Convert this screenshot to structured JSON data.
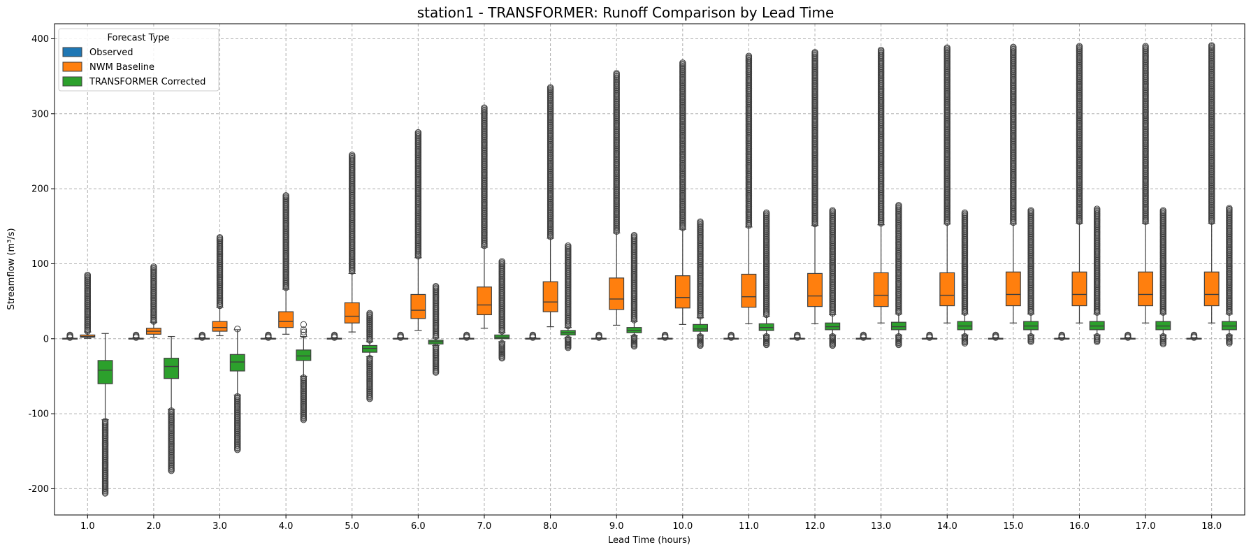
{
  "chart_data": {
    "type": "box",
    "title": "station1 - TRANSFORMER: Runoff Comparison by Lead Time",
    "xlabel": "Lead Time (hours)",
    "ylabel": "Streamflow (m³/s)",
    "ylim": [
      -235,
      420
    ],
    "yticks": [
      -200,
      -100,
      0,
      100,
      200,
      300,
      400
    ],
    "grid": true,
    "legend": {
      "title": "Forecast Type",
      "position": "top-left"
    },
    "categories": [
      "1.0",
      "2.0",
      "3.0",
      "4.0",
      "5.0",
      "6.0",
      "7.0",
      "8.0",
      "9.0",
      "10.0",
      "11.0",
      "12.0",
      "13.0",
      "14.0",
      "15.0",
      "16.0",
      "17.0",
      "18.0"
    ],
    "series": [
      {
        "name": "Observed",
        "color": "#1f77b4",
        "boxes": [
          {
            "wl": 0,
            "q1": 0,
            "med": 0.3,
            "q3": 0.6,
            "wh": 1.4,
            "omin": 1.6,
            "omax": 5
          },
          {
            "wl": 0,
            "q1": 0,
            "med": 0.3,
            "q3": 0.6,
            "wh": 1.4,
            "omin": 1.6,
            "omax": 5
          },
          {
            "wl": 0,
            "q1": 0,
            "med": 0.3,
            "q3": 0.6,
            "wh": 1.4,
            "omin": 1.6,
            "omax": 5
          },
          {
            "wl": 0,
            "q1": 0,
            "med": 0.3,
            "q3": 0.6,
            "wh": 1.4,
            "omin": 1.6,
            "omax": 5
          },
          {
            "wl": 0,
            "q1": 0,
            "med": 0.3,
            "q3": 0.6,
            "wh": 1.4,
            "omin": 1.6,
            "omax": 5
          },
          {
            "wl": 0,
            "q1": 0,
            "med": 0.3,
            "q3": 0.6,
            "wh": 1.4,
            "omin": 1.6,
            "omax": 5
          },
          {
            "wl": 0,
            "q1": 0,
            "med": 0.3,
            "q3": 0.6,
            "wh": 1.4,
            "omin": 1.6,
            "omax": 5
          },
          {
            "wl": 0,
            "q1": 0,
            "med": 0.3,
            "q3": 0.6,
            "wh": 1.4,
            "omin": 1.6,
            "omax": 5
          },
          {
            "wl": 0,
            "q1": 0,
            "med": 0.3,
            "q3": 0.6,
            "wh": 1.4,
            "omin": 1.6,
            "omax": 5
          },
          {
            "wl": 0,
            "q1": 0,
            "med": 0.3,
            "q3": 0.6,
            "wh": 1.4,
            "omin": 1.6,
            "omax": 5
          },
          {
            "wl": 0,
            "q1": 0,
            "med": 0.3,
            "q3": 0.6,
            "wh": 1.4,
            "omin": 1.6,
            "omax": 5
          },
          {
            "wl": 0,
            "q1": 0,
            "med": 0.3,
            "q3": 0.6,
            "wh": 1.4,
            "omin": 1.6,
            "omax": 5
          },
          {
            "wl": 0,
            "q1": 0,
            "med": 0.3,
            "q3": 0.6,
            "wh": 1.4,
            "omin": 1.6,
            "omax": 5
          },
          {
            "wl": 0,
            "q1": 0,
            "med": 0.3,
            "q3": 0.6,
            "wh": 1.4,
            "omin": 1.6,
            "omax": 5
          },
          {
            "wl": 0,
            "q1": 0,
            "med": 0.3,
            "q3": 0.6,
            "wh": 1.4,
            "omin": 1.6,
            "omax": 5
          },
          {
            "wl": 0,
            "q1": 0,
            "med": 0.3,
            "q3": 0.6,
            "wh": 1.4,
            "omin": 1.6,
            "omax": 5
          },
          {
            "wl": 0,
            "q1": 0,
            "med": 0.3,
            "q3": 0.6,
            "wh": 1.4,
            "omin": 1.6,
            "omax": 5
          },
          {
            "wl": 0,
            "q1": 0,
            "med": 0.3,
            "q3": 0.6,
            "wh": 1.4,
            "omin": 1.6,
            "omax": 5
          }
        ]
      },
      {
        "name": "NWM Baseline",
        "color": "#ff7f0e",
        "boxes": [
          {
            "wl": 0.5,
            "q1": 2,
            "med": 3,
            "q3": 5,
            "wh": 9,
            "omin": 10,
            "omax": 85
          },
          {
            "wl": 2,
            "q1": 6,
            "med": 10,
            "q3": 14,
            "wh": 22,
            "omin": 23,
            "omax": 96
          },
          {
            "wl": 4,
            "q1": 10,
            "med": 15,
            "q3": 23,
            "wh": 42,
            "omin": 44,
            "omax": 135
          },
          {
            "wl": 6,
            "q1": 15,
            "med": 23,
            "q3": 36,
            "wh": 66,
            "omin": 68,
            "omax": 191
          },
          {
            "wl": 9,
            "q1": 21,
            "med": 30,
            "q3": 48,
            "wh": 87,
            "omin": 90,
            "omax": 245
          },
          {
            "wl": 11,
            "q1": 27,
            "med": 38,
            "q3": 59,
            "wh": 108,
            "omin": 110,
            "omax": 275
          },
          {
            "wl": 14,
            "q1": 32,
            "med": 45,
            "q3": 69,
            "wh": 122,
            "omin": 124,
            "omax": 308
          },
          {
            "wl": 16,
            "q1": 36,
            "med": 49,
            "q3": 76,
            "wh": 134,
            "omin": 136,
            "omax": 335
          },
          {
            "wl": 18,
            "q1": 39,
            "med": 53,
            "q3": 81,
            "wh": 141,
            "omin": 143,
            "omax": 354
          },
          {
            "wl": 19,
            "q1": 41,
            "med": 55,
            "q3": 84,
            "wh": 146,
            "omin": 148,
            "omax": 368
          },
          {
            "wl": 20,
            "q1": 42,
            "med": 56,
            "q3": 86,
            "wh": 149,
            "omin": 151,
            "omax": 377
          },
          {
            "wl": 20,
            "q1": 43,
            "med": 57,
            "q3": 87,
            "wh": 151,
            "omin": 153,
            "omax": 382
          },
          {
            "wl": 21,
            "q1": 43,
            "med": 58,
            "q3": 88,
            "wh": 152,
            "omin": 154,
            "omax": 385
          },
          {
            "wl": 21,
            "q1": 44,
            "med": 58,
            "q3": 88,
            "wh": 153,
            "omin": 155,
            "omax": 388
          },
          {
            "wl": 21,
            "q1": 44,
            "med": 59,
            "q3": 89,
            "wh": 153,
            "omin": 155,
            "omax": 389
          },
          {
            "wl": 21,
            "q1": 44,
            "med": 59,
            "q3": 89,
            "wh": 154,
            "omin": 156,
            "omax": 390
          },
          {
            "wl": 21,
            "q1": 44,
            "med": 59,
            "q3": 89,
            "wh": 154,
            "omin": 156,
            "omax": 390
          },
          {
            "wl": 21,
            "q1": 44,
            "med": 59,
            "q3": 89,
            "wh": 154,
            "omin": 156,
            "omax": 391
          }
        ]
      },
      {
        "name": "TRANSFORMER Corrected",
        "color": "#2ca02c",
        "boxes": [
          {
            "wl": -108,
            "q1": -60,
            "med": -42,
            "q3": -29,
            "wh": 7,
            "omin": -206,
            "omax": -110
          },
          {
            "wl": -94,
            "q1": -53,
            "med": -37,
            "q3": -26,
            "wh": 3,
            "omin": -176,
            "omax": -96
          },
          {
            "wl": -75,
            "q1": -43,
            "med": -31,
            "q3": -21,
            "wh": 12,
            "omin": -148,
            "omax": -77,
            "oup": [
              13
            ]
          },
          {
            "wl": -50,
            "q1": -29,
            "med": -23,
            "q3": -15,
            "wh": 3,
            "omin": -108,
            "omax": -52,
            "oup": [
              5,
              9,
              12,
              19
            ]
          },
          {
            "wl": -24,
            "q1": -18,
            "med": -13,
            "q3": -9,
            "wh": -4,
            "omin": -80,
            "omax": -26,
            "oupr": [
              -2,
              34
            ]
          },
          {
            "wl": -9,
            "q1": -7,
            "med": -4,
            "q3": -2,
            "wh": 1,
            "omin": -45,
            "omax": -11,
            "oupr": [
              3,
              70
            ]
          },
          {
            "wl": -4,
            "q1": 0,
            "med": 2,
            "q3": 5,
            "wh": 8,
            "omin": -26,
            "omax": -6,
            "oupr": [
              10,
              103
            ]
          },
          {
            "wl": 2,
            "q1": 5,
            "med": 8,
            "q3": 11,
            "wh": 15,
            "omin": -12,
            "omax": 0,
            "oupr": [
              17,
              124
            ]
          },
          {
            "wl": 4,
            "q1": 8,
            "med": 11,
            "q3": 15,
            "wh": 23,
            "omin": -10,
            "omax": 2,
            "oupr": [
              25,
              138
            ]
          },
          {
            "wl": 5,
            "q1": 10,
            "med": 13,
            "q3": 19,
            "wh": 28,
            "omin": -9,
            "omax": 3,
            "oupr": [
              30,
              156
            ]
          },
          {
            "wl": 5,
            "q1": 11,
            "med": 15,
            "q3": 20,
            "wh": 30,
            "omin": -8,
            "omax": 3,
            "oupr": [
              32,
              168
            ]
          },
          {
            "wl": 5,
            "q1": 12,
            "med": 16,
            "q3": 21,
            "wh": 32,
            "omin": -9,
            "omax": 3,
            "oupr": [
              34,
              171
            ]
          },
          {
            "wl": 5,
            "q1": 12,
            "med": 16,
            "q3": 22,
            "wh": 33,
            "omin": -8,
            "omax": 3,
            "oupr": [
              35,
              178
            ]
          },
          {
            "wl": 5,
            "q1": 12,
            "med": 17,
            "q3": 23,
            "wh": 33,
            "omin": -6,
            "omax": 3,
            "oupr": [
              35,
              168
            ]
          },
          {
            "wl": 5,
            "q1": 12,
            "med": 17,
            "q3": 23,
            "wh": 33,
            "omin": -4,
            "omax": 3,
            "oupr": [
              35,
              171
            ]
          },
          {
            "wl": 5,
            "q1": 12,
            "med": 17,
            "q3": 23,
            "wh": 33,
            "omin": -4,
            "omax": 3,
            "oupr": [
              35,
              173
            ]
          },
          {
            "wl": 5,
            "q1": 12,
            "med": 17,
            "q3": 23,
            "wh": 33,
            "omin": -7,
            "omax": 3,
            "oupr": [
              35,
              171
            ]
          },
          {
            "wl": 5,
            "q1": 12,
            "med": 17,
            "q3": 23,
            "wh": 33,
            "omin": -6,
            "omax": 3,
            "oupr": [
              35,
              174
            ]
          }
        ]
      }
    ]
  }
}
